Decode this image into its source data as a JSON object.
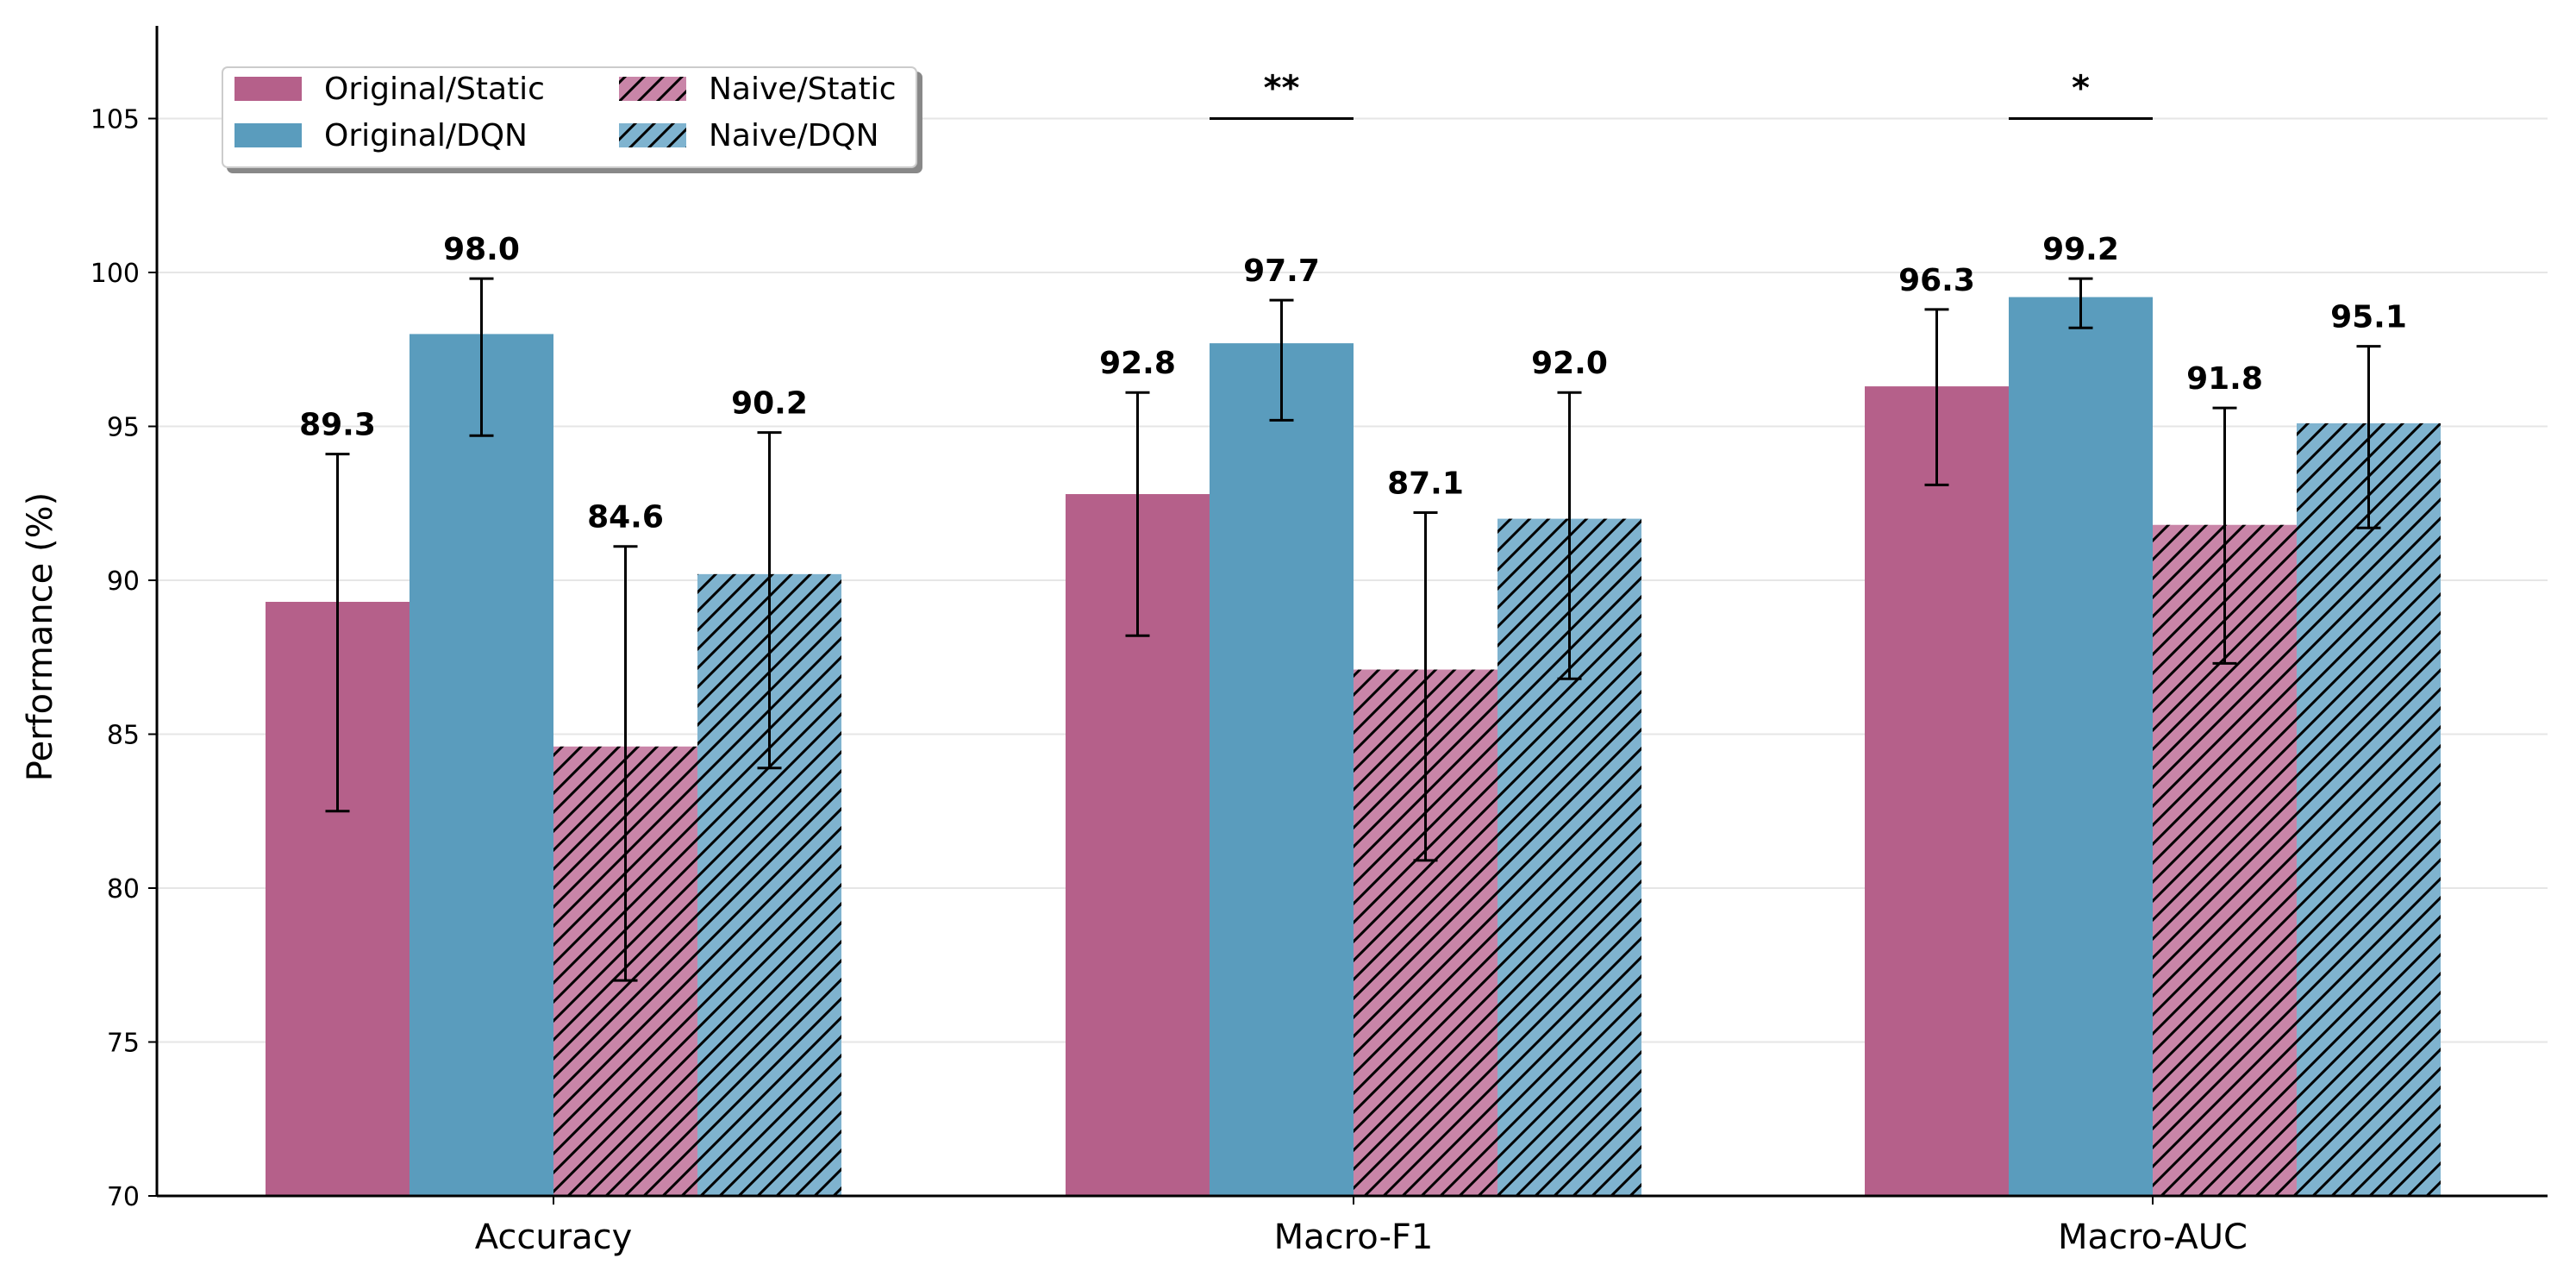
{
  "chart_data": {
    "type": "bar",
    "title": "",
    "xlabel": "",
    "ylabel": "Performance (%)",
    "ylim": [
      70,
      108
    ],
    "yticks": [
      70,
      75,
      80,
      85,
      90,
      95,
      100,
      105
    ],
    "grid": "horizontal",
    "legend_position": "top-left",
    "categories": [
      "Accuracy",
      "Macro-F1",
      "Macro-AUC"
    ],
    "series": [
      {
        "name": "Original/Static",
        "color": "#b5608a",
        "hatch": false,
        "values": [
          89.3,
          92.8,
          96.3
        ],
        "errors": [
          [
            82.5,
            94.1
          ],
          [
            88.2,
            96.1
          ],
          [
            93.1,
            98.8
          ]
        ]
      },
      {
        "name": "Original/DQN",
        "color": "#5a9cbd",
        "hatch": false,
        "values": [
          98.0,
          97.7,
          99.2
        ],
        "errors": [
          [
            94.7,
            99.8
          ],
          [
            95.2,
            99.1
          ],
          [
            98.2,
            99.8
          ]
        ]
      },
      {
        "name": "Naive/Static",
        "color": "#c985a8",
        "hatch": true,
        "values": [
          84.6,
          87.1,
          91.8
        ],
        "errors": [
          [
            77.0,
            91.1
          ],
          [
            80.9,
            92.2
          ],
          [
            87.3,
            95.6
          ]
        ]
      },
      {
        "name": "Naive/DQN",
        "color": "#7fb3cf",
        "hatch": true,
        "values": [
          90.2,
          92.0,
          95.1
        ],
        "errors": [
          [
            83.9,
            94.8
          ],
          [
            86.8,
            96.1
          ],
          [
            91.7,
            97.6
          ]
        ]
      }
    ],
    "significance": [
      {
        "category": "Macro-F1",
        "label": "**",
        "y": 105
      },
      {
        "category": "Macro-AUC",
        "label": "*",
        "y": 105
      }
    ],
    "legend_columns": 2
  }
}
